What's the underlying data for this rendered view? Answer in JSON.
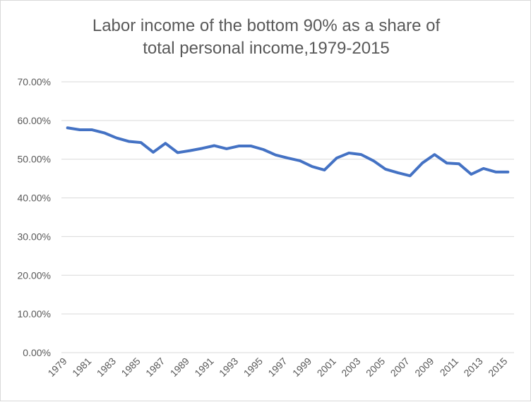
{
  "chart_data": {
    "type": "line",
    "title_lines": [
      "Labor income of the bottom 90% as a share of",
      "total personal income,1979-2015"
    ],
    "xlabel": "",
    "ylabel": "",
    "x": [
      1979,
      1980,
      1981,
      1982,
      1983,
      1984,
      1985,
      1986,
      1987,
      1988,
      1989,
      1990,
      1991,
      1992,
      1993,
      1994,
      1995,
      1996,
      1997,
      1998,
      1999,
      2000,
      2001,
      2002,
      2003,
      2004,
      2005,
      2006,
      2007,
      2008,
      2009,
      2010,
      2011,
      2012,
      2013,
      2014,
      2015
    ],
    "x_tick_labels": [
      "1979",
      "1981",
      "1983",
      "1985",
      "1987",
      "1989",
      "1991",
      "1993",
      "1995",
      "1997",
      "1999",
      "2001",
      "2003",
      "2005",
      "2007",
      "2009",
      "2011",
      "2013",
      "2015"
    ],
    "y_tick_labels": [
      "0.00%",
      "10.00%",
      "20.00%",
      "30.00%",
      "40.00%",
      "50.00%",
      "60.00%",
      "70.00%"
    ],
    "ylim": [
      0,
      0.7
    ],
    "grid": true,
    "series": [
      {
        "values": [
          0.581,
          0.576,
          0.576,
          0.568,
          0.555,
          0.546,
          0.543,
          0.518,
          0.541,
          0.517,
          0.522,
          0.528,
          0.535,
          0.527,
          0.534,
          0.534,
          0.525,
          0.511,
          0.503,
          0.496,
          0.481,
          0.472,
          0.503,
          0.516,
          0.512,
          0.496,
          0.474,
          0.465,
          0.457,
          0.49,
          0.512,
          0.49,
          0.488,
          0.461,
          0.476,
          0.467,
          0.467
        ],
        "color": "#4472c4"
      }
    ],
    "colors": {
      "grid": "#d9d9d9",
      "text": "#595959"
    }
  }
}
